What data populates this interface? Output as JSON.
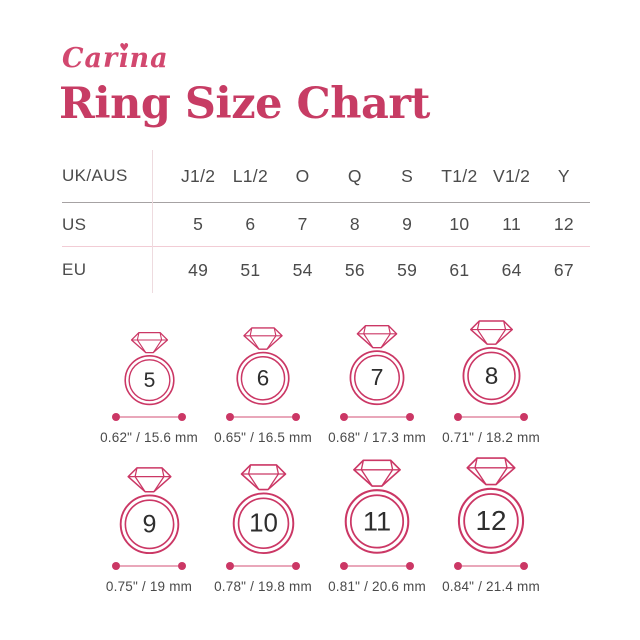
{
  "brand": {
    "name": "Carina",
    "pre": "Car",
    "dotless_i": "ı",
    "post": "na",
    "heart": "♥"
  },
  "title": "Ring Size Chart",
  "colors": {
    "accent": "#cb3765",
    "title": "#c73c64",
    "logo": "#d2486f",
    "table_text": "#4b4b4b",
    "number_text": "#2e2e2e",
    "divider_gray": "#a6a2a3",
    "divider_pink": "#f2ccd5",
    "divider_vertical": "#eedbdf",
    "measure_line": "#e9a7ba",
    "measure_text": "#4a4a4a"
  },
  "size_table": {
    "rows": [
      {
        "label": "UK/AUS",
        "values": [
          "J1/2",
          "L1/2",
          "O",
          "Q",
          "S",
          "T1/2",
          "V1/2",
          "Y"
        ]
      },
      {
        "label": "US",
        "values": [
          "5",
          "6",
          "7",
          "8",
          "9",
          "10",
          "11",
          "12"
        ]
      },
      {
        "label": "EU",
        "values": [
          "49",
          "51",
          "54",
          "56",
          "59",
          "61",
          "64",
          "67"
        ]
      }
    ]
  },
  "rings": [
    {
      "us_size": "5",
      "diameter_label": "0.62\" / 15.6 mm",
      "diameter_mm": 15.6
    },
    {
      "us_size": "6",
      "diameter_label": "0.65\" / 16.5 mm",
      "diameter_mm": 16.5
    },
    {
      "us_size": "7",
      "diameter_label": "0.68\" / 17.3 mm",
      "diameter_mm": 17.3
    },
    {
      "us_size": "8",
      "diameter_label": "0.71\" / 18.2 mm",
      "diameter_mm": 18.2
    },
    {
      "us_size": "9",
      "diameter_label": "0.75\" / 19 mm",
      "diameter_mm": 19
    },
    {
      "us_size": "10",
      "diameter_label": "0.78\" / 19.8 mm",
      "diameter_mm": 19.8
    },
    {
      "us_size": "11",
      "diameter_label": "0.81\" / 20.6 mm",
      "diameter_mm": 20.6
    },
    {
      "us_size": "12",
      "diameter_label": "0.84\" / 21.4 mm",
      "diameter_mm": 21.4
    }
  ]
}
